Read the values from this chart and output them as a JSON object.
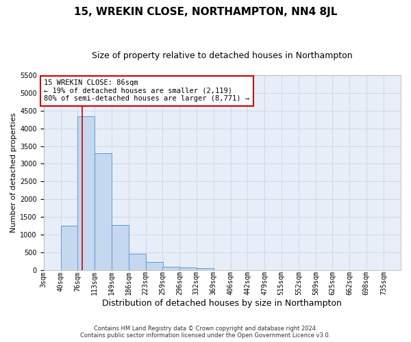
{
  "title": "15, WREKIN CLOSE, NORTHAMPTON, NN4 8JL",
  "subtitle": "Size of property relative to detached houses in Northampton",
  "xlabel": "Distribution of detached houses by size in Northampton",
  "ylabel": "Number of detached properties",
  "categories": [
    "3sqm",
    "40sqm",
    "76sqm",
    "113sqm",
    "149sqm",
    "186sqm",
    "223sqm",
    "259sqm",
    "296sqm",
    "332sqm",
    "369sqm",
    "406sqm",
    "442sqm",
    "479sqm",
    "515sqm",
    "552sqm",
    "589sqm",
    "625sqm",
    "662sqm",
    "698sqm",
    "735sqm"
  ],
  "values": [
    0,
    1250,
    4350,
    3300,
    1270,
    460,
    220,
    100,
    80,
    50,
    0,
    0,
    0,
    0,
    0,
    0,
    0,
    0,
    0,
    0,
    0
  ],
  "bar_color": "#c5d8f0",
  "bar_edge_color": "#5b9bd5",
  "annotation_text": "15 WREKIN CLOSE: 86sqm\n← 19% of detached houses are smaller (2,119)\n80% of semi-detached houses are larger (8,771) →",
  "annotation_box_color": "#ffffff",
  "annotation_box_edge_color": "#cc0000",
  "vline_x": 86,
  "vline_color": "#cc0000",
  "ylim": [
    0,
    5500
  ],
  "yticks": [
    0,
    500,
    1000,
    1500,
    2000,
    2500,
    3000,
    3500,
    4000,
    4500,
    5000,
    5500
  ],
  "bin_edges": [
    3,
    40,
    76,
    113,
    149,
    186,
    223,
    259,
    296,
    332,
    369,
    406,
    442,
    479,
    515,
    552,
    589,
    625,
    662,
    698,
    735
  ],
  "bin_width": 37,
  "footer": "Contains HM Land Registry data © Crown copyright and database right 2024.\nContains public sector information licensed under the Open Government Licence v3.0.",
  "bg_color": "#ffffff",
  "plot_bg_color": "#e8eef8",
  "grid_color": "#c8d4e8",
  "title_fontsize": 11,
  "subtitle_fontsize": 9,
  "ylabel_fontsize": 8,
  "xlabel_fontsize": 9,
  "tick_fontsize": 7,
  "footer_fontsize": 6,
  "ann_fontsize": 7.5
}
